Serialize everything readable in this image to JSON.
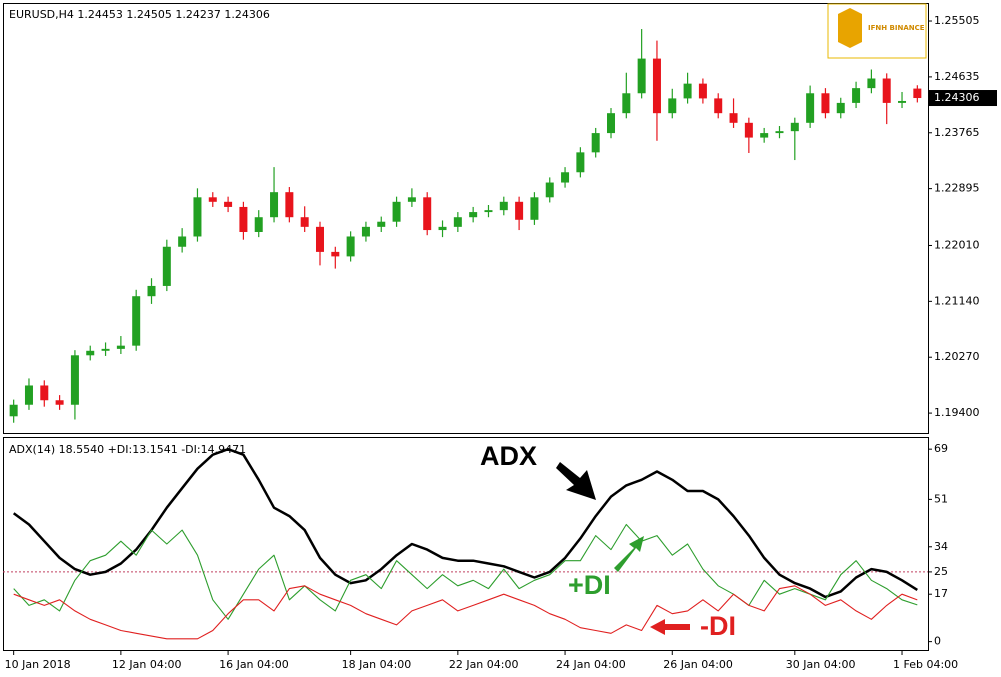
{
  "chart_data": [
    {
      "type": "candlestick",
      "title": "EURUSD,H4  1.24453 1.24505 1.24237 1.24306",
      "logo": "IFNH BINANCE",
      "up_color": "#22a022",
      "down_color": "#e8141c",
      "open": [
        1.1935,
        1.1953,
        1.1983,
        1.196,
        1.1953,
        1.203,
        1.2037,
        1.204,
        1.2045,
        1.2122,
        1.2138,
        1.2199,
        1.2215,
        1.2276,
        1.2269,
        1.2261,
        1.2222,
        1.2245,
        1.2284,
        1.2245,
        1.223,
        1.2191,
        1.2184,
        1.2215,
        1.223,
        1.2238,
        1.2269,
        1.2276,
        1.2225,
        1.223,
        1.2245,
        1.2253,
        1.2256,
        1.2269,
        1.2241,
        1.2276,
        1.2299,
        1.2315,
        1.2346,
        1.2376,
        1.2407,
        1.2438,
        1.2492,
        1.2407,
        1.243,
        1.2453,
        1.243,
        1.2407,
        1.2392,
        1.2369,
        1.2376,
        1.2379,
        1.2392,
        1.2438,
        1.2407,
        1.2423,
        1.2446,
        1.2461,
        1.2423,
        1.24453
      ],
      "high": [
        1.1961,
        1.1994,
        1.1991,
        1.1968,
        1.2038,
        1.2045,
        1.205,
        1.206,
        1.2132,
        1.215,
        1.221,
        1.2228,
        1.229,
        1.2284,
        1.2277,
        1.2269,
        1.2256,
        1.2323,
        1.2292,
        1.2262,
        1.2238,
        1.2199,
        1.2223,
        1.2238,
        1.2246,
        1.2277,
        1.229,
        1.2284,
        1.224,
        1.2253,
        1.2261,
        1.2264,
        1.2277,
        1.2277,
        1.2284,
        1.2307,
        1.2323,
        1.2354,
        1.2384,
        1.2415,
        1.247,
        1.2538,
        1.252,
        1.2445,
        1.247,
        1.2461,
        1.2438,
        1.243,
        1.24,
        1.2384,
        1.2387,
        1.24,
        1.245,
        1.2446,
        1.2431,
        1.2456,
        1.2475,
        1.2469,
        1.244,
        1.24505
      ],
      "low": [
        1.1925,
        1.1945,
        1.195,
        1.1945,
        1.193,
        1.2022,
        1.2029,
        1.2032,
        1.2037,
        1.211,
        1.213,
        1.219,
        1.2207,
        1.2261,
        1.2253,
        1.221,
        1.2214,
        1.2237,
        1.2237,
        1.2222,
        1.217,
        1.2165,
        1.2176,
        1.2207,
        1.2222,
        1.223,
        1.2261,
        1.2217,
        1.2214,
        1.2222,
        1.2237,
        1.2245,
        1.2248,
        1.2225,
        1.2233,
        1.2268,
        1.2291,
        1.2307,
        1.2338,
        1.2368,
        1.2399,
        1.243,
        1.2364,
        1.2399,
        1.2422,
        1.2422,
        1.2399,
        1.2384,
        1.2345,
        1.2361,
        1.2368,
        1.2334,
        1.2384,
        1.2399,
        1.2399,
        1.2415,
        1.2438,
        1.239,
        1.2415,
        1.24237
      ],
      "close": [
        1.1953,
        1.1983,
        1.196,
        1.1953,
        1.203,
        1.2037,
        1.204,
        1.2045,
        1.2122,
        1.2138,
        1.2199,
        1.2215,
        1.2276,
        1.2269,
        1.2261,
        1.2222,
        1.2245,
        1.2284,
        1.2245,
        1.223,
        1.2191,
        1.2184,
        1.2215,
        1.223,
        1.2238,
        1.2269,
        1.2276,
        1.2225,
        1.223,
        1.2245,
        1.2253,
        1.2256,
        1.2269,
        1.2241,
        1.2276,
        1.2299,
        1.2315,
        1.2346,
        1.2376,
        1.2407,
        1.2438,
        1.2492,
        1.2407,
        1.243,
        1.2453,
        1.243,
        1.2407,
        1.2392,
        1.2369,
        1.2376,
        1.2379,
        1.2392,
        1.2438,
        1.2407,
        1.2423,
        1.2446,
        1.2461,
        1.2423,
        1.2426,
        1.24306
      ],
      "last_price": 1.24306,
      "ylim": [
        1.1909,
        1.2577
      ],
      "yticks": [
        1.25505,
        1.24635,
        1.23765,
        1.22895,
        {
          "value": 1.2201,
          "label": "1.22010"
        },
        {
          "value": 1.2114,
          "label": "1.21140"
        },
        {
          "value": 1.2027,
          "label": "1.20270"
        },
        {
          "value": 1.194,
          "label": "1.19400"
        }
      ]
    },
    {
      "type": "line",
      "title": "ADX(14) 18.5540 +DI:13.1541 -DI:14.9471",
      "categories": [
        "10 Jan 2018",
        null,
        null,
        null,
        null,
        null,
        null,
        "12 Jan 04:00",
        null,
        null,
        null,
        null,
        null,
        null,
        "16 Jan 04:00",
        null,
        null,
        null,
        null,
        null,
        null,
        null,
        "18 Jan 04:00",
        null,
        null,
        null,
        null,
        null,
        null,
        "22 Jan 04:00",
        null,
        null,
        null,
        null,
        null,
        null,
        "24 Jan 04:00",
        null,
        null,
        null,
        null,
        null,
        null,
        "26 Jan 04:00",
        null,
        null,
        null,
        null,
        null,
        null,
        null,
        "30 Jan 04:00",
        null,
        null,
        null,
        null,
        null,
        null,
        "1 Feb 04:00",
        null
      ],
      "series": [
        {
          "name": "ADX",
          "color": "#000000",
          "values": [
            46,
            42,
            36,
            30,
            26,
            24,
            25,
            28,
            33,
            40,
            48,
            55,
            62,
            67,
            69,
            67,
            58,
            48,
            45,
            40,
            30,
            24,
            21,
            22,
            26,
            31,
            35,
            33,
            30,
            29,
            29,
            28,
            27,
            25,
            23,
            25,
            30,
            37,
            45,
            52,
            56,
            58,
            61,
            58,
            54,
            54,
            51,
            45,
            38,
            30,
            24,
            21,
            19,
            16,
            18,
            23,
            26,
            25,
            22,
            18.554
          ]
        },
        {
          "name": "+DI",
          "color": "#2e9e2e",
          "values": [
            19,
            13,
            15,
            11,
            22,
            29,
            31,
            36,
            31,
            40,
            35,
            40,
            31,
            15,
            8,
            17,
            26,
            31,
            15,
            20,
            15,
            11,
            22,
            24,
            19,
            29,
            24,
            19,
            24,
            20,
            22,
            19,
            26,
            19,
            22,
            24,
            29,
            29,
            38,
            33,
            42,
            36,
            38,
            31,
            35,
            26,
            20,
            17,
            13,
            22,
            17,
            19,
            17,
            15,
            24,
            29,
            22,
            19,
            15,
            13.1541
          ]
        },
        {
          "name": "-DI",
          "color": "#e02020",
          "values": [
            17,
            15,
            13,
            15,
            11,
            8,
            6,
            4,
            3,
            2,
            1,
            1,
            1,
            4,
            10,
            15,
            15,
            11,
            19,
            20,
            17,
            15,
            13,
            10,
            8,
            6,
            11,
            13,
            15,
            11,
            13,
            15,
            17,
            15,
            13,
            10,
            8,
            5,
            4,
            3,
            6,
            4,
            13,
            10,
            11,
            15,
            11,
            17,
            13,
            11,
            19,
            20,
            17,
            13,
            15,
            11,
            8,
            13,
            17,
            14.9471
          ]
        }
      ],
      "level": 25,
      "annotations": [
        "ADX",
        "+DI",
        "-DI"
      ],
      "ylim": [
        -3,
        73
      ],
      "yticks": [
        69,
        51,
        34,
        25,
        17,
        0
      ]
    }
  ]
}
